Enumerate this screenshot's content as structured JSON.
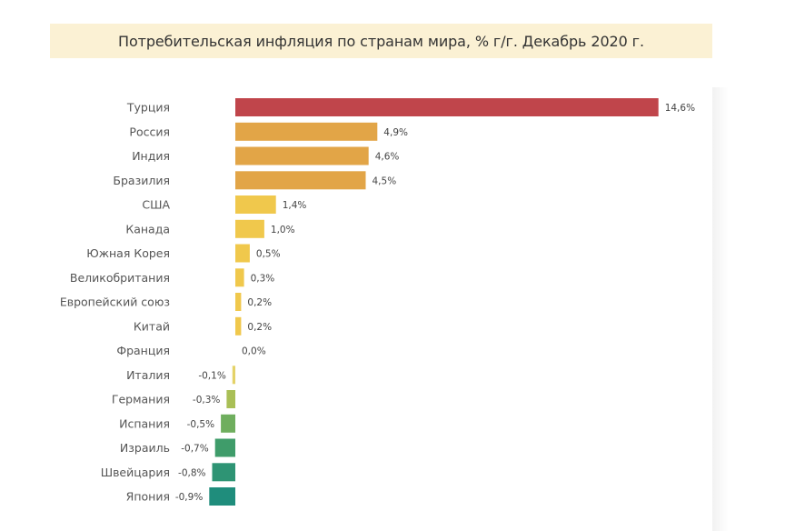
{
  "chart_data": {
    "type": "bar",
    "orientation": "horizontal",
    "title": "Потребительская инфляция по странам мира, % г/г. Декабрь 2020 г.",
    "categories": [
      "Турция",
      "Россия",
      "Индия",
      "Бразилия",
      "США",
      "Канада",
      "Южная Корея",
      "Великобритания",
      "Европейский союз",
      "Китай",
      "Франция",
      "Италия",
      "Германия",
      "Испания",
      "Израиль",
      "Швейцария",
      "Япония"
    ],
    "values": [
      14.6,
      4.9,
      4.6,
      4.5,
      1.4,
      1.0,
      0.5,
      0.3,
      0.2,
      0.2,
      0.0,
      -0.1,
      -0.3,
      -0.5,
      -0.7,
      -0.8,
      -0.9
    ],
    "value_labels": [
      "14,6%",
      "4,9%",
      "4,6%",
      "4,5%",
      "1,4%",
      "1,0%",
      "0,5%",
      "0,3%",
      "0,2%",
      "0,2%",
      "0,0%",
      "-0,1%",
      "-0,3%",
      "-0,5%",
      "-0,7%",
      "-0,8%",
      "-0,9%"
    ],
    "bar_colors": [
      "#c0454b",
      "#e2a547",
      "#e2a547",
      "#e2a547",
      "#f0c84c",
      "#f0c84c",
      "#f0c84c",
      "#f0c84c",
      "#f0c84c",
      "#f0c84c",
      "#f0c84c",
      "#e4d268",
      "#a9bf56",
      "#6fae5e",
      "#3f9c6a",
      "#2e9474",
      "#1f8d7c"
    ],
    "xlim": [
      -0.9,
      14.6
    ],
    "xlabel": "",
    "ylabel": "",
    "grid": false,
    "legend": "none"
  },
  "colors": {
    "title_background": "#fbf1d4",
    "title_text": "#333333",
    "category_text": "#555555",
    "value_text": "#444444"
  }
}
